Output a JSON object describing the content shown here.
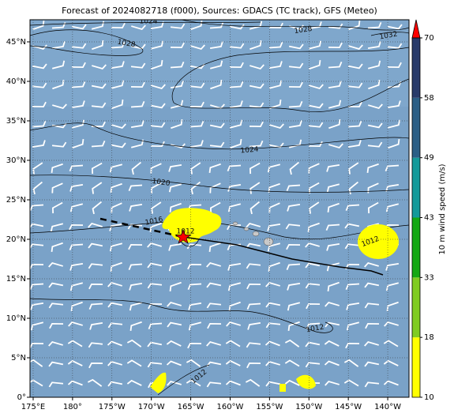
{
  "title": "Forecast of 2024082718 (f000), Sources: GDACS (TC track), GFS (Meteo)",
  "map": {
    "xlim": [
      174.6,
      222.7
    ],
    "ylim": [
      0,
      47.8
    ],
    "xticks": [
      {
        "value": 175,
        "label": "175°E"
      },
      {
        "value": 180,
        "label": "180°"
      },
      {
        "value": 185,
        "label": "175°W"
      },
      {
        "value": 190,
        "label": "170°W"
      },
      {
        "value": 195,
        "label": "165°W"
      },
      {
        "value": 200,
        "label": "160°W"
      },
      {
        "value": 205,
        "label": "155°W"
      },
      {
        "value": 210,
        "label": "150°W"
      },
      {
        "value": 215,
        "label": "145°W"
      },
      {
        "value": 220,
        "label": "140°W"
      }
    ],
    "yticks": [
      {
        "value": 0,
        "label": "0°"
      },
      {
        "value": 5,
        "label": "5°N"
      },
      {
        "value": 10,
        "label": "10°N"
      },
      {
        "value": 15,
        "label": "15°N"
      },
      {
        "value": 20,
        "label": "20°N"
      },
      {
        "value": 25,
        "label": "25°N"
      },
      {
        "value": 30,
        "label": "30°N"
      },
      {
        "value": 35,
        "label": "35°N"
      },
      {
        "value": 40,
        "label": "40°N"
      },
      {
        "value": 45,
        "label": "45°N"
      }
    ],
    "grid": true,
    "contour_labels": [
      "1024",
      "1028",
      "1028",
      "1032",
      "1024",
      "1020",
      "1016",
      "1012",
      "1012",
      "1012",
      "1012"
    ]
  },
  "colorbar": {
    "label": "10 m wind speed (m/s)",
    "ticks": [
      10,
      18,
      33,
      43,
      49,
      58,
      70
    ],
    "colors": [
      "#ffff00",
      "#80cc22",
      "#14a814",
      "#149a9a",
      "#2a5e86",
      "#283a6a"
    ],
    "extend_color": "#ff0000"
  }
}
